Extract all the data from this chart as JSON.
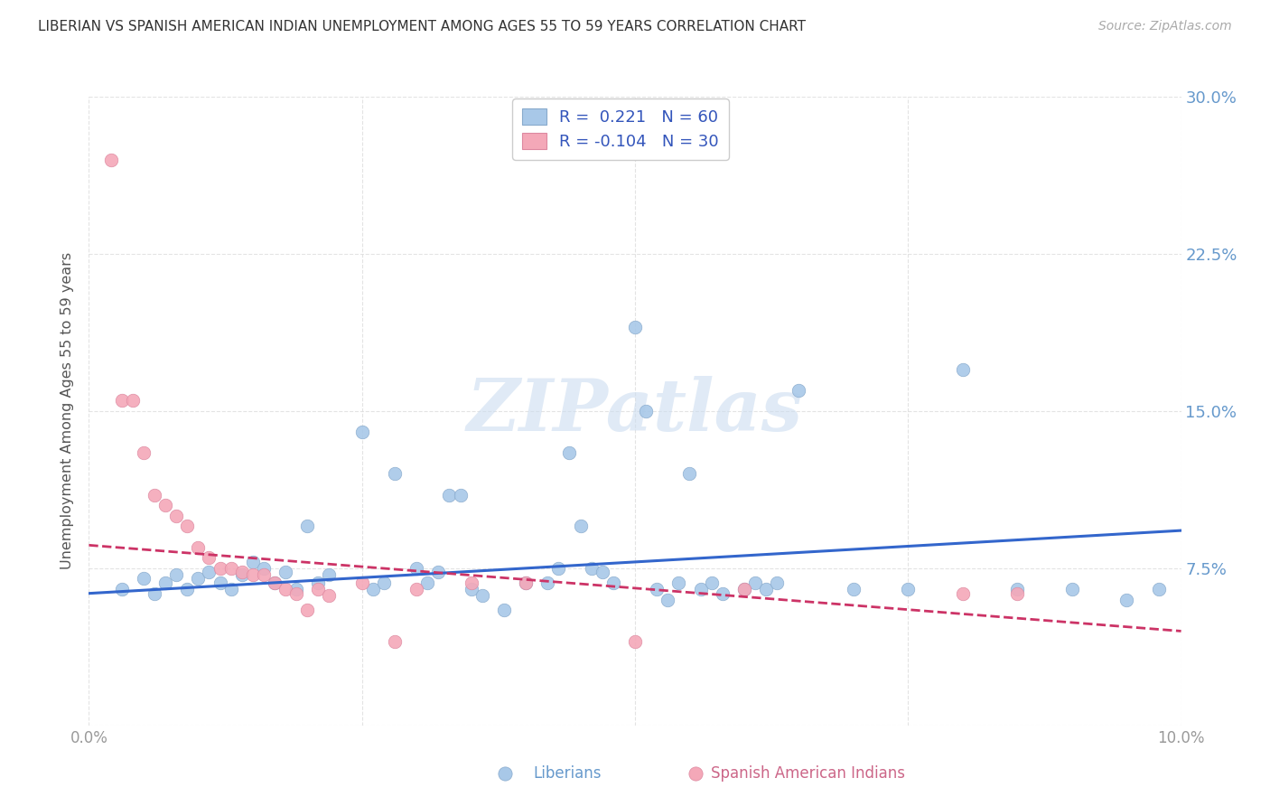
{
  "title": "LIBERIAN VS SPANISH AMERICAN INDIAN UNEMPLOYMENT AMONG AGES 55 TO 59 YEARS CORRELATION CHART",
  "source": "Source: ZipAtlas.com",
  "ylabel": "Unemployment Among Ages 55 to 59 years",
  "xlim": [
    0.0,
    0.1
  ],
  "ylim": [
    0.0,
    0.3
  ],
  "watermark_text": "ZIPatlas",
  "legend_R_blue": "0.221",
  "legend_N_blue": "60",
  "legend_R_pink": "-0.104",
  "legend_N_pink": "30",
  "blue_color": "#a8c8e8",
  "pink_color": "#f4a8b8",
  "blue_line_color": "#3366cc",
  "pink_line_color": "#cc3366",
  "blue_scatter": [
    [
      0.003,
      0.065
    ],
    [
      0.005,
      0.07
    ],
    [
      0.006,
      0.063
    ],
    [
      0.007,
      0.068
    ],
    [
      0.008,
      0.072
    ],
    [
      0.009,
      0.065
    ],
    [
      0.01,
      0.07
    ],
    [
      0.011,
      0.073
    ],
    [
      0.012,
      0.068
    ],
    [
      0.013,
      0.065
    ],
    [
      0.014,
      0.072
    ],
    [
      0.015,
      0.078
    ],
    [
      0.016,
      0.075
    ],
    [
      0.017,
      0.068
    ],
    [
      0.018,
      0.073
    ],
    [
      0.019,
      0.065
    ],
    [
      0.02,
      0.095
    ],
    [
      0.021,
      0.068
    ],
    [
      0.022,
      0.072
    ],
    [
      0.025,
      0.14
    ],
    [
      0.026,
      0.065
    ],
    [
      0.027,
      0.068
    ],
    [
      0.028,
      0.12
    ],
    [
      0.03,
      0.075
    ],
    [
      0.031,
      0.068
    ],
    [
      0.032,
      0.073
    ],
    [
      0.033,
      0.11
    ],
    [
      0.034,
      0.11
    ],
    [
      0.035,
      0.065
    ],
    [
      0.036,
      0.062
    ],
    [
      0.038,
      0.055
    ],
    [
      0.04,
      0.068
    ],
    [
      0.042,
      0.068
    ],
    [
      0.043,
      0.075
    ],
    [
      0.044,
      0.13
    ],
    [
      0.045,
      0.095
    ],
    [
      0.046,
      0.075
    ],
    [
      0.047,
      0.073
    ],
    [
      0.048,
      0.068
    ],
    [
      0.05,
      0.19
    ],
    [
      0.051,
      0.15
    ],
    [
      0.052,
      0.065
    ],
    [
      0.053,
      0.06
    ],
    [
      0.054,
      0.068
    ],
    [
      0.055,
      0.12
    ],
    [
      0.056,
      0.065
    ],
    [
      0.057,
      0.068
    ],
    [
      0.058,
      0.063
    ],
    [
      0.06,
      0.065
    ],
    [
      0.061,
      0.068
    ],
    [
      0.062,
      0.065
    ],
    [
      0.063,
      0.068
    ],
    [
      0.065,
      0.16
    ],
    [
      0.07,
      0.065
    ],
    [
      0.075,
      0.065
    ],
    [
      0.08,
      0.17
    ],
    [
      0.085,
      0.065
    ],
    [
      0.09,
      0.065
    ],
    [
      0.095,
      0.06
    ],
    [
      0.098,
      0.065
    ]
  ],
  "pink_scatter": [
    [
      0.002,
      0.27
    ],
    [
      0.003,
      0.155
    ],
    [
      0.004,
      0.155
    ],
    [
      0.005,
      0.13
    ],
    [
      0.006,
      0.11
    ],
    [
      0.007,
      0.105
    ],
    [
      0.008,
      0.1
    ],
    [
      0.009,
      0.095
    ],
    [
      0.01,
      0.085
    ],
    [
      0.011,
      0.08
    ],
    [
      0.012,
      0.075
    ],
    [
      0.013,
      0.075
    ],
    [
      0.014,
      0.073
    ],
    [
      0.015,
      0.072
    ],
    [
      0.016,
      0.072
    ],
    [
      0.017,
      0.068
    ],
    [
      0.018,
      0.065
    ],
    [
      0.019,
      0.063
    ],
    [
      0.02,
      0.055
    ],
    [
      0.021,
      0.065
    ],
    [
      0.022,
      0.062
    ],
    [
      0.025,
      0.068
    ],
    [
      0.028,
      0.04
    ],
    [
      0.03,
      0.065
    ],
    [
      0.035,
      0.068
    ],
    [
      0.04,
      0.068
    ],
    [
      0.05,
      0.04
    ],
    [
      0.06,
      0.065
    ],
    [
      0.08,
      0.063
    ],
    [
      0.085,
      0.063
    ]
  ],
  "blue_trend_x": [
    0.0,
    0.1
  ],
  "blue_trend_y": [
    0.063,
    0.093
  ],
  "pink_trend_x": [
    0.0,
    0.1
  ],
  "pink_trend_y": [
    0.086,
    0.045
  ]
}
